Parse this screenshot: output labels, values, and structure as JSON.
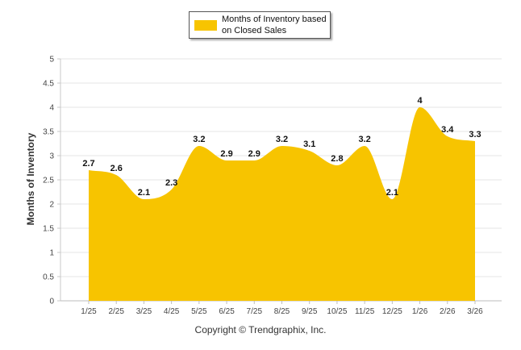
{
  "chart_data": {
    "type": "area",
    "title": "",
    "legend": [
      "Months of Inventory based on Closed Sales"
    ],
    "legend_position": "top-center",
    "xlabel": "",
    "ylabel": "Months of Inventory",
    "categories": [
      "1/25",
      "2/25",
      "3/25",
      "4/25",
      "5/25",
      "6/25",
      "7/25",
      "8/25",
      "9/25",
      "10/25",
      "11/25",
      "12/25",
      "1/26",
      "2/26",
      "3/26"
    ],
    "series": [
      {
        "name": "Months of Inventory based on Closed Sales",
        "values": [
          2.7,
          2.6,
          2.1,
          2.3,
          3.2,
          2.9,
          2.9,
          3.2,
          3.1,
          2.8,
          3.2,
          2.1,
          4,
          3.4,
          3.3
        ],
        "color": "#f7c400"
      }
    ],
    "ylim": [
      0,
      5
    ],
    "yticks": [
      "0",
      "0.5",
      "1",
      "1.5",
      "2",
      "2.5",
      "3",
      "3.5",
      "4",
      "4.5",
      "5"
    ],
    "grid": true
  },
  "footer": {
    "copyright": "Copyright © Trendgraphix, Inc."
  }
}
